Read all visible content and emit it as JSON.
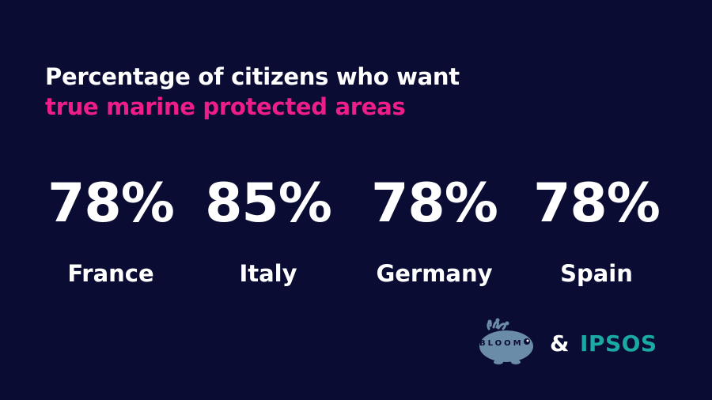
{
  "title": {
    "line1": "Percentage of citizens who want",
    "line2": "true marine protected areas"
  },
  "stats": [
    {
      "value": "78%",
      "label": "France"
    },
    {
      "value": "85%",
      "label": "Italy"
    },
    {
      "value": "78%",
      "label": "Germany"
    },
    {
      "value": "78%",
      "label": "Spain"
    }
  ],
  "footer": {
    "bloom_logo_text": "BLOOM",
    "ampersand": "&",
    "partner": "IPSOS"
  },
  "colors": {
    "background": "#0a0c33",
    "accent": "#ee1d8a",
    "ipsos": "#1aa9a4",
    "bloom": "#6a8ca8"
  }
}
